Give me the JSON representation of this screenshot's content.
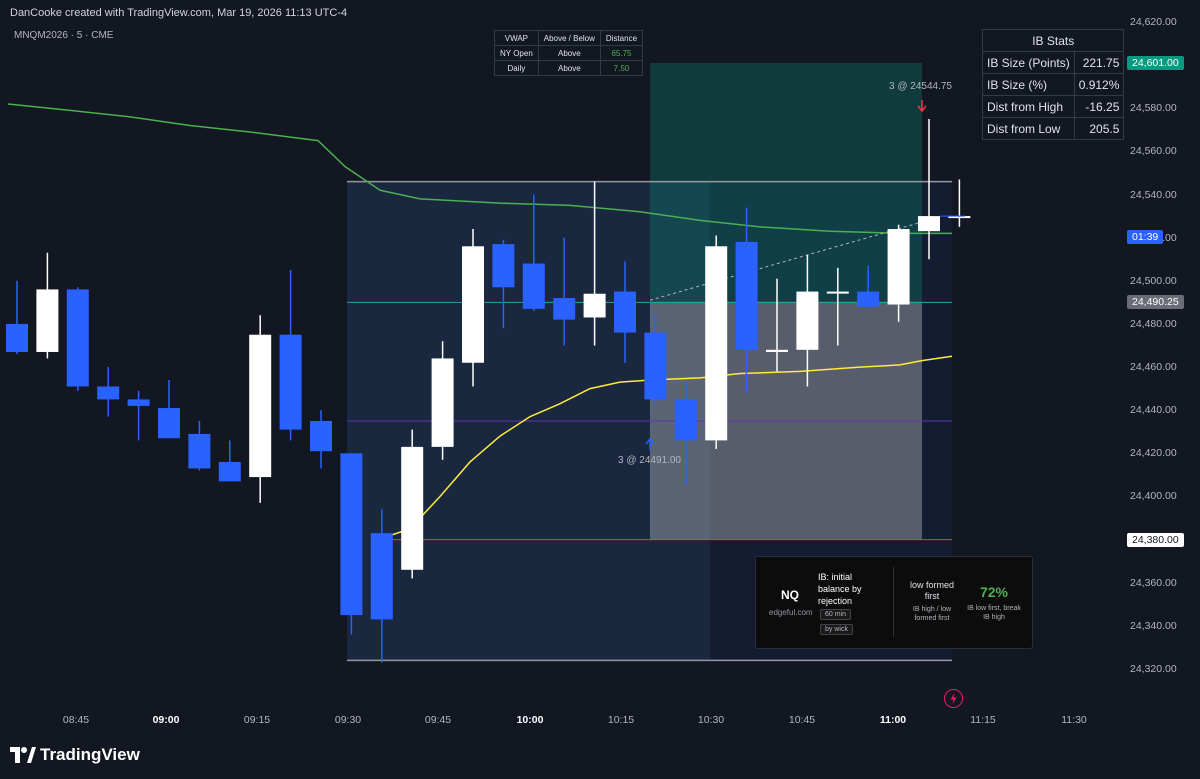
{
  "header": {
    "text": "DanCooke created with TradingView.com, Mar 19, 2026 11:13 UTC-4"
  },
  "symbol": {
    "text": "MNQM2026 · 5 · CME"
  },
  "vwap_table": {
    "headers": [
      "VWAP",
      "Above / Below",
      "Distance"
    ],
    "rows": [
      {
        "label": "NY Open",
        "position": "Above",
        "distance": "65.75"
      },
      {
        "label": "Daily",
        "position": "Above",
        "distance": "7.50"
      }
    ]
  },
  "ib_stats": {
    "title": "IB Stats",
    "rows": [
      {
        "label": "IB Size (Points)",
        "value": "221.75"
      },
      {
        "label": "IB Size (%)",
        "value": "0.912%"
      },
      {
        "label": "Dist from High",
        "value": "-16.25"
      },
      {
        "label": "Dist from Low",
        "value": "205.5"
      }
    ]
  },
  "price_labels": [
    "24,620.00",
    "24,580.00",
    "24,560.00",
    "24,540.00",
    "24,520.00",
    "24,500.00",
    "24,480.00",
    "24,460.00",
    "24,440.00",
    "24,420.00",
    "24,400.00",
    "24,360.00",
    "24,340.00",
    "24,320.00"
  ],
  "price_tags": {
    "target": "24,601.00",
    "countdown": "01:39",
    "entry": "24,490.25",
    "stop": "24,380.00"
  },
  "time_labels": [
    {
      "text": "08:45",
      "bold": false
    },
    {
      "text": "09:00",
      "bold": true
    },
    {
      "text": "09:15",
      "bold": false
    },
    {
      "text": "09:30",
      "bold": false
    },
    {
      "text": "09:45",
      "bold": false
    },
    {
      "text": "10:00",
      "bold": true
    },
    {
      "text": "10:15",
      "bold": false
    },
    {
      "text": "10:30",
      "bold": false
    },
    {
      "text": "10:45",
      "bold": false
    },
    {
      "text": "11:00",
      "bold": true
    },
    {
      "text": "11:15",
      "bold": false
    },
    {
      "text": "11:30",
      "bold": false
    }
  ],
  "annotations": {
    "sell": "3 @ 24544.75",
    "buy": "3 @ 24491.00"
  },
  "card": {
    "symbol": "NQ",
    "site": "edgeful.com",
    "title": "IB: initial balance by rejection",
    "pill1": "60 min",
    "pill2": "by wick",
    "stat_title": "low formed first",
    "stat_sub": "IB high / low formed first",
    "percent": "72%",
    "percent_sub": "IB low first, break IB high"
  },
  "footer": {
    "brand": "TradingView"
  },
  "colors": {
    "bg": "#131722",
    "up": "#ffffff",
    "down": "#2962ff",
    "vwap_green": "#4caf50",
    "vwap_yellow": "#ffeb3b",
    "stop": "#f23645",
    "target": "#089981"
  },
  "chart_data": {
    "type": "candlestick",
    "interval": "5",
    "candles": [
      {
        "t": "08:35",
        "o": 24480,
        "h": 24500,
        "l": 24466,
        "c": 24467
      },
      {
        "t": "08:40",
        "o": 24467,
        "h": 24513,
        "l": 24464,
        "c": 24496
      },
      {
        "t": "08:45",
        "o": 24496,
        "h": 24497,
        "l": 24449,
        "c": 24451
      },
      {
        "t": "08:50",
        "o": 24451,
        "h": 24460,
        "l": 24437,
        "c": 24445
      },
      {
        "t": "08:55",
        "o": 24445,
        "h": 24449,
        "l": 24426,
        "c": 24442
      },
      {
        "t": "09:00",
        "o": 24441,
        "h": 24454,
        "l": 24427,
        "c": 24427
      },
      {
        "t": "09:05",
        "o": 24429,
        "h": 24435,
        "l": 24412,
        "c": 24413
      },
      {
        "t": "09:10",
        "o": 24416,
        "h": 24426,
        "l": 24409,
        "c": 24407
      },
      {
        "t": "09:15",
        "o": 24409,
        "h": 24484,
        "l": 24397,
        "c": 24475
      },
      {
        "t": "09:20",
        "o": 24475,
        "h": 24505,
        "l": 24426,
        "c": 24431
      },
      {
        "t": "09:25",
        "o": 24435,
        "h": 24440,
        "l": 24413,
        "c": 24421
      },
      {
        "t": "09:30",
        "o": 24420,
        "h": 24420,
        "l": 24336,
        "c": 24345
      },
      {
        "t": "09:35",
        "o": 24383,
        "h": 24394,
        "l": 24323,
        "c": 24343
      },
      {
        "t": "09:40",
        "o": 24366,
        "h": 24431,
        "l": 24362,
        "c": 24423
      },
      {
        "t": "09:45",
        "o": 24423,
        "h": 24472,
        "l": 24417,
        "c": 24464
      },
      {
        "t": "09:50",
        "o": 24462,
        "h": 24524,
        "l": 24451,
        "c": 24516
      },
      {
        "t": "09:55",
        "o": 24517,
        "h": 24519,
        "l": 24478,
        "c": 24497
      },
      {
        "t": "10:00",
        "o": 24508,
        "h": 24540,
        "l": 24486,
        "c": 24487
      },
      {
        "t": "10:05",
        "o": 24492,
        "h": 24520,
        "l": 24470,
        "c": 24482
      },
      {
        "t": "10:10",
        "o": 24483,
        "h": 24546,
        "l": 24470,
        "c": 24494
      },
      {
        "t": "10:15",
        "o": 24495,
        "h": 24509,
        "l": 24462,
        "c": 24476
      },
      {
        "t": "10:20",
        "o": 24476,
        "h": 24485,
        "l": 24443,
        "c": 24445
      },
      {
        "t": "10:25",
        "o": 24445,
        "h": 24453,
        "l": 24406,
        "c": 24426
      },
      {
        "t": "10:30",
        "o": 24426,
        "h": 24521,
        "l": 24422,
        "c": 24516
      },
      {
        "t": "10:35",
        "o": 24518,
        "h": 24534,
        "l": 24448,
        "c": 24468
      },
      {
        "t": "10:40",
        "o": 24467,
        "h": 24501,
        "l": 24458,
        "c": 24468
      },
      {
        "t": "10:45",
        "o": 24468,
        "h": 24512,
        "l": 24451,
        "c": 24495
      },
      {
        "t": "10:50",
        "o": 24495,
        "h": 24506,
        "l": 24470,
        "c": 24495
      },
      {
        "t": "10:55",
        "o": 24495,
        "h": 24507,
        "l": 24487,
        "c": 24488
      },
      {
        "t": "11:00",
        "o": 24489,
        "h": 24526,
        "l": 24481,
        "c": 24524
      },
      {
        "t": "11:05",
        "o": 24523,
        "h": 24575,
        "l": 24510,
        "c": 24530
      },
      {
        "t": "11:10",
        "o": 24530,
        "h": 24547,
        "l": 24525,
        "c": 24530
      }
    ],
    "ib_high": 24546,
    "ib_low": 24324,
    "entry": 24490.25,
    "stop": 24380,
    "target": 24601,
    "sell_fill": 24544.75,
    "buy_fill": 24491,
    "ylim": [
      24310,
      24625
    ]
  }
}
